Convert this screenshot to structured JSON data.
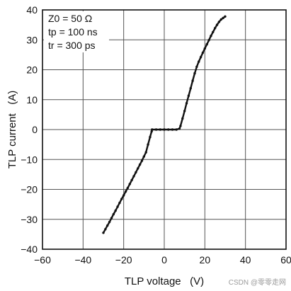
{
  "chart_data": {
    "type": "scatter",
    "xlabel": "TLP voltage   (V)",
    "ylabel": "TLP current   (A)",
    "xlim": [
      -60,
      60
    ],
    "ylim": [
      -40,
      40
    ],
    "x_ticks": [
      -60,
      -40,
      -20,
      0,
      20,
      40,
      60
    ],
    "y_ticks": [
      -40,
      -30,
      -20,
      -10,
      0,
      10,
      20,
      30,
      40
    ],
    "x_tick_labels": [
      "−60",
      "−40",
      "−20",
      "0",
      "20",
      "40",
      "60"
    ],
    "y_tick_labels": [
      "−40",
      "−30",
      "−20",
      "−10",
      "0",
      "10",
      "20",
      "30",
      "40"
    ],
    "grid": true,
    "annotations": [
      "Z0 = 50 Ω",
      "tp = 100 ns",
      "tr = 300 ps"
    ],
    "series": [
      {
        "color": "#111111",
        "points": [
          [
            -30,
            -34.5
          ],
          [
            -29,
            -33.3
          ],
          [
            -28,
            -32.1
          ],
          [
            -27,
            -30.9
          ],
          [
            -26,
            -29.6
          ],
          [
            -25,
            -28.3
          ],
          [
            -24,
            -27.1
          ],
          [
            -23,
            -25.8
          ],
          [
            -22,
            -24.5
          ],
          [
            -21,
            -23.2
          ],
          [
            -20,
            -22.0
          ],
          [
            -19,
            -20.7
          ],
          [
            -18,
            -19.5
          ],
          [
            -17,
            -18.2
          ],
          [
            -16,
            -16.9
          ],
          [
            -15,
            -15.6
          ],
          [
            -14,
            -14.3
          ],
          [
            -13,
            -13.0
          ],
          [
            -12,
            -11.7
          ],
          [
            -11,
            -10.4
          ],
          [
            -10,
            -9.0
          ],
          [
            -9,
            -7.6
          ],
          [
            -8,
            -5.0
          ],
          [
            -7,
            -2.5
          ],
          [
            -6.2,
            -0.6
          ],
          [
            -6,
            0
          ],
          [
            -4,
            0
          ],
          [
            -2,
            0
          ],
          [
            0,
            0
          ],
          [
            2,
            0
          ],
          [
            4,
            0
          ],
          [
            6,
            0
          ],
          [
            7.5,
            0.3
          ],
          [
            8,
            1.2
          ],
          [
            9,
            3.7
          ],
          [
            10,
            6.2
          ],
          [
            11,
            8.8
          ],
          [
            12,
            11.3
          ],
          [
            13,
            13.8
          ],
          [
            14,
            16.3
          ],
          [
            15,
            18.8
          ],
          [
            16,
            21.0
          ],
          [
            17,
            22.7
          ],
          [
            18,
            24.2
          ],
          [
            19,
            25.7
          ],
          [
            20,
            27.1
          ],
          [
            21,
            28.5
          ],
          [
            22,
            29.9
          ],
          [
            23,
            31.3
          ],
          [
            24,
            32.6
          ],
          [
            25,
            33.9
          ],
          [
            26,
            35.0
          ],
          [
            27,
            36.0
          ],
          [
            28,
            36.8
          ],
          [
            29,
            37.3
          ],
          [
            30,
            37.8
          ]
        ]
      }
    ]
  },
  "watermark": "CSDN @零零走网"
}
